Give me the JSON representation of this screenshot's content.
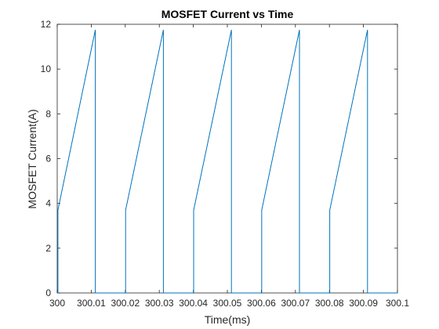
{
  "chart_data": {
    "type": "line",
    "title": "MOSFET Current vs Time",
    "xlabel": "Time(ms)",
    "ylabel": "MOSFET Current(A)",
    "xlim": [
      300,
      300.1
    ],
    "ylim": [
      0,
      12
    ],
    "xticks": [
      300,
      300.01,
      300.02,
      300.03,
      300.04,
      300.05,
      300.06,
      300.07,
      300.08,
      300.09,
      300.1
    ],
    "xtick_labels": [
      "300",
      "300.01",
      "300.02",
      "300.03",
      "300.04",
      "300.05",
      "300.06",
      "300.07",
      "300.08",
      "300.09",
      "300.1"
    ],
    "yticks": [
      0,
      2,
      4,
      6,
      8,
      10,
      12
    ],
    "ytick_labels": [
      "0",
      "2",
      "4",
      "6",
      "8",
      "10",
      "12"
    ],
    "grid": false,
    "series": [
      {
        "color": "#0072bd",
        "x": [
          300.0,
          300.0002,
          300.0002,
          300.0112,
          300.0112,
          300.0201,
          300.0201,
          300.0312,
          300.0312,
          300.0401,
          300.0401,
          300.0512,
          300.0512,
          300.0601,
          300.0601,
          300.0712,
          300.0712,
          300.0801,
          300.0801,
          300.0912,
          300.0912,
          300.1
        ],
        "y": [
          0,
          0,
          3.7,
          11.75,
          0,
          0,
          3.7,
          11.75,
          0,
          0,
          3.7,
          11.75,
          0,
          0,
          3.7,
          11.75,
          0,
          0,
          3.7,
          11.75,
          0,
          0
        ]
      }
    ]
  }
}
